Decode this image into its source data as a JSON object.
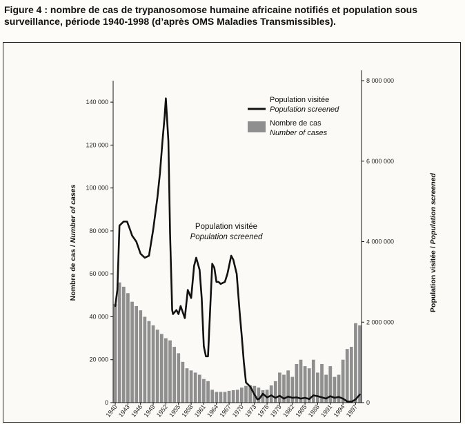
{
  "figure": {
    "title": "Figure 4 : nombre de cas de trypanosomose humaine africaine notifiés et population sous surveillance, période 1940-1998 (d’après OMS Maladies Transmissibles)."
  },
  "colors": {
    "bars": "#8f8f8f",
    "line": "#111111",
    "background": "#fbfaf6"
  },
  "chart_data": {
    "type": "bar",
    "overlay_type": "line",
    "ylabel": "Nombre de cas / Number of cases",
    "ylabel_fr": "Nombre de cas",
    "ylabel_en": "Number of cases",
    "y2label": "Population visitée / Population screened",
    "y2label_fr": "Population visitée",
    "y2label_en": "Population screened",
    "ylim": [
      0,
      150000
    ],
    "y2lim": [
      0,
      8000000
    ],
    "yticks": [
      0,
      20000,
      40000,
      60000,
      80000,
      100000,
      120000,
      140000
    ],
    "ytick_labels": [
      "0",
      "20 000",
      "40 000",
      "60 000",
      "80 000",
      "100 000",
      "120 000",
      "140 000"
    ],
    "y2ticks": [
      0,
      2000000,
      4000000,
      6000000,
      8000000
    ],
    "y2tick_labels": [
      "0",
      "2 000 000",
      "4 000 000",
      "6 000 000",
      "8 000 000"
    ],
    "xtick_labels": [
      "1940",
      "1943",
      "1946",
      "1949",
      "1952",
      "1955",
      "1958",
      "1961",
      "1964",
      "1967",
      "1970",
      "1973",
      "1976",
      "1979",
      "1982",
      "1985",
      "1988",
      "1991",
      "1994",
      "1997"
    ],
    "grid": false,
    "legend_position": "top-right",
    "legend": [
      {
        "kind": "line",
        "label_fr": "Population visitée",
        "label_en": "Population screened"
      },
      {
        "kind": "bar",
        "label_fr": "Nombre de cas",
        "label_en": "Number of cases"
      }
    ],
    "annotation": {
      "fr": "Population visitée",
      "en": "Population screened"
    },
    "series": [
      {
        "name": "Nombre de cas",
        "type": "bar",
        "axis": "left",
        "x": [
          1940,
          1941,
          1942,
          1943,
          1944,
          1945,
          1946,
          1947,
          1948,
          1949,
          1950,
          1951,
          1952,
          1953,
          1954,
          1955,
          1956,
          1957,
          1958,
          1959,
          1960,
          1961,
          1962,
          1963,
          1964,
          1965,
          1966,
          1967,
          1968,
          1969,
          1970,
          1971,
          1972,
          1973,
          1974,
          1975,
          1976,
          1977,
          1978,
          1979,
          1980,
          1981,
          1982,
          1983,
          1984,
          1985,
          1986,
          1987,
          1988,
          1989,
          1990,
          1991,
          1992,
          1993,
          1994,
          1995,
          1996,
          1997,
          1998
        ],
        "values": [
          46000,
          56000,
          54000,
          51000,
          47000,
          45000,
          43000,
          40000,
          38000,
          36000,
          34000,
          32000,
          30000,
          29000,
          26000,
          23000,
          19000,
          16000,
          15000,
          14000,
          13000,
          11000,
          10000,
          6000,
          5000,
          5000,
          5000,
          5500,
          5800,
          6000,
          7000,
          7800,
          8000,
          7800,
          7000,
          5800,
          6000,
          8000,
          10000,
          14000,
          13000,
          15000,
          12000,
          18000,
          20000,
          17000,
          16000,
          20000,
          14000,
          18000,
          13000,
          17000,
          12000,
          13000,
          20000,
          25000,
          26000,
          37000,
          36000
        ]
      },
      {
        "name": "Population visitée",
        "type": "line",
        "axis": "right",
        "x": [
          1940,
          1940.5,
          1941,
          1942,
          1942.8,
          1943.5,
          1944,
          1945,
          1946,
          1947,
          1948,
          1949,
          1950,
          1950.6,
          1951.2,
          1951.7,
          1952,
          1952.6,
          1953,
          1953.5,
          1953.7,
          1954.5,
          1955,
          1955.5,
          1956,
          1956.5,
          1957.2,
          1958,
          1958.7,
          1959.2,
          1960,
          1960.5,
          1961,
          1961.5,
          1962,
          1962.5,
          1963,
          1963.5,
          1964,
          1964.5,
          1965,
          1966,
          1966.6,
          1967.5,
          1968,
          1968.8,
          1969.5,
          1970,
          1970.5,
          1971,
          1972,
          1972.5,
          1973,
          1973.3,
          1973.7,
          1974.2,
          1975,
          1976,
          1977,
          1978,
          1979,
          1980,
          1981,
          1982,
          1983,
          1984,
          1985,
          1986,
          1987,
          1988,
          1989,
          1990,
          1991,
          1992,
          1993,
          1994,
          1995,
          1996,
          1997,
          1998
        ],
        "values": [
          2400000,
          2800000,
          4400000,
          4500000,
          4500000,
          4300000,
          4150000,
          4000000,
          3700000,
          3600000,
          3650000,
          4300000,
          5100000,
          5700000,
          6500000,
          7100000,
          7560000,
          6500000,
          4200000,
          2300000,
          2200000,
          2300000,
          2200000,
          2400000,
          2250000,
          2100000,
          2800000,
          2600000,
          3400000,
          3600000,
          3300000,
          2600000,
          1400000,
          1150000,
          1150000,
          2300000,
          3450000,
          3350000,
          3000000,
          3000000,
          2950000,
          3000000,
          3200000,
          3650000,
          3550000,
          3200000,
          2250000,
          1650000,
          1000000,
          500000,
          400000,
          300000,
          200000,
          150000,
          80000,
          100000,
          220000,
          130000,
          180000,
          120000,
          170000,
          100000,
          150000,
          120000,
          130000,
          100000,
          120000,
          90000,
          180000,
          160000,
          130000,
          100000,
          160000,
          120000,
          140000,
          100000,
          30000,
          20000,
          80000,
          200000
        ]
      }
    ]
  }
}
